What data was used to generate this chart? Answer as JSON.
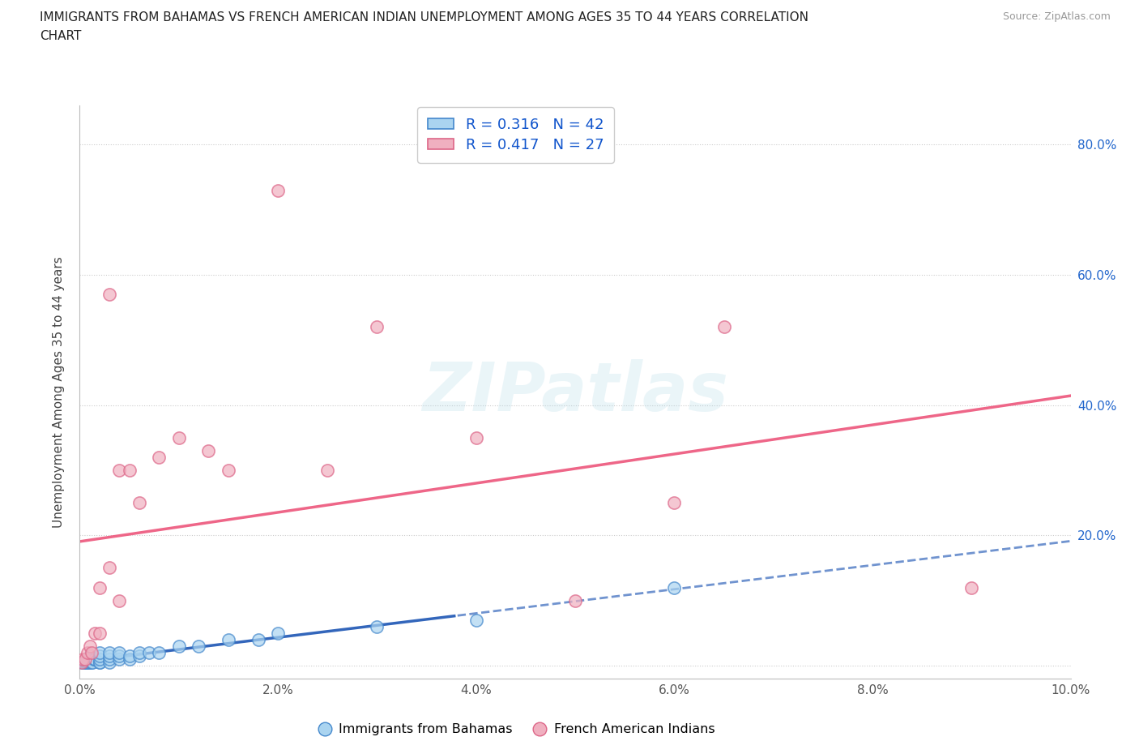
{
  "title_line1": "IMMIGRANTS FROM BAHAMAS VS FRENCH AMERICAN INDIAN UNEMPLOYMENT AMONG AGES 35 TO 44 YEARS CORRELATION",
  "title_line2": "CHART",
  "source_text": "Source: ZipAtlas.com",
  "ylabel": "Unemployment Among Ages 35 to 44 years",
  "xlim": [
    0.0,
    0.1
  ],
  "ylim": [
    -0.02,
    0.86
  ],
  "x_ticks": [
    0.0,
    0.02,
    0.04,
    0.06,
    0.08,
    0.1
  ],
  "x_tick_labels": [
    "0.0%",
    "2.0%",
    "4.0%",
    "6.0%",
    "8.0%",
    "10.0%"
  ],
  "y_ticks": [
    0.0,
    0.2,
    0.4,
    0.6,
    0.8
  ],
  "y_tick_labels_right": [
    "",
    "20.0%",
    "40.0%",
    "60.0%",
    "80.0%"
  ],
  "grid_color": "#cccccc",
  "background_color": "#ffffff",
  "watermark_text": "ZIPatlas",
  "bahamas_fill": "#aad4f0",
  "bahamas_edge": "#4488cc",
  "french_fill": "#f0b0c0",
  "french_edge": "#dd6688",
  "bahamas_line_color": "#3366bb",
  "french_line_color": "#ee6688",
  "R_bahamas": 0.316,
  "N_bahamas": 42,
  "R_french": 0.417,
  "N_french": 27,
  "legend_rn_labels": [
    "R = 0.316   N = 42",
    "R = 0.417   N = 27"
  ],
  "legend_series_labels": [
    "Immigrants from Bahamas",
    "French American Indians"
  ],
  "bahamas_x": [
    0.0002,
    0.0003,
    0.0004,
    0.0005,
    0.0006,
    0.0007,
    0.0008,
    0.0009,
    0.001,
    0.001,
    0.001,
    0.0012,
    0.0013,
    0.0014,
    0.0015,
    0.0015,
    0.002,
    0.002,
    0.002,
    0.002,
    0.002,
    0.003,
    0.003,
    0.003,
    0.003,
    0.004,
    0.004,
    0.004,
    0.005,
    0.005,
    0.006,
    0.006,
    0.007,
    0.008,
    0.01,
    0.012,
    0.015,
    0.018,
    0.02,
    0.03,
    0.04,
    0.06
  ],
  "bahamas_y": [
    0.005,
    0.005,
    0.005,
    0.005,
    0.005,
    0.005,
    0.005,
    0.005,
    0.005,
    0.01,
    0.015,
    0.005,
    0.005,
    0.01,
    0.01,
    0.01,
    0.005,
    0.005,
    0.01,
    0.015,
    0.02,
    0.005,
    0.01,
    0.015,
    0.02,
    0.01,
    0.015,
    0.02,
    0.01,
    0.015,
    0.015,
    0.02,
    0.02,
    0.02,
    0.03,
    0.03,
    0.04,
    0.04,
    0.05,
    0.06,
    0.07,
    0.12
  ],
  "french_x": [
    0.0002,
    0.0003,
    0.0005,
    0.0008,
    0.001,
    0.0012,
    0.0015,
    0.002,
    0.002,
    0.003,
    0.003,
    0.004,
    0.004,
    0.005,
    0.006,
    0.008,
    0.01,
    0.013,
    0.015,
    0.02,
    0.025,
    0.03,
    0.04,
    0.05,
    0.06,
    0.065,
    0.09
  ],
  "french_y": [
    0.005,
    0.01,
    0.01,
    0.02,
    0.03,
    0.02,
    0.05,
    0.05,
    0.12,
    0.15,
    0.57,
    0.3,
    0.1,
    0.3,
    0.25,
    0.32,
    0.35,
    0.33,
    0.3,
    0.73,
    0.3,
    0.52,
    0.35,
    0.1,
    0.25,
    0.52,
    0.12
  ]
}
